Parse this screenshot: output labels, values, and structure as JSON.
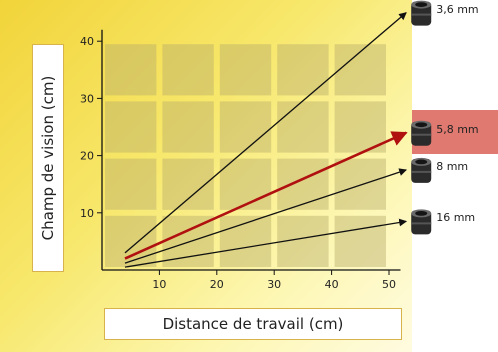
{
  "chart_data": {
    "type": "line",
    "xlabel": "Distance de travail (cm)",
    "ylabel": "Champ de vision (cm)",
    "xticks": [
      10,
      20,
      30,
      40,
      50
    ],
    "yticks": [
      10,
      20,
      30,
      40
    ],
    "xlim": [
      0,
      50
    ],
    "ylim": [
      0,
      42
    ],
    "grid": true,
    "highlighted_series": "5,8 mm",
    "series": [
      {
        "name": "3,6 mm",
        "x": [
          4,
          53
        ],
        "y": [
          3,
          45
        ],
        "color": "#111111"
      },
      {
        "name": "5,8 mm",
        "x": [
          4,
          53
        ],
        "y": [
          2,
          24
        ],
        "color": "#b01010"
      },
      {
        "name": "8 mm",
        "x": [
          4,
          53
        ],
        "y": [
          1.2,
          17.5
        ],
        "color": "#111111"
      },
      {
        "name": "16 mm",
        "x": [
          4,
          53
        ],
        "y": [
          0.5,
          8.5
        ],
        "color": "#111111"
      }
    ]
  }
}
